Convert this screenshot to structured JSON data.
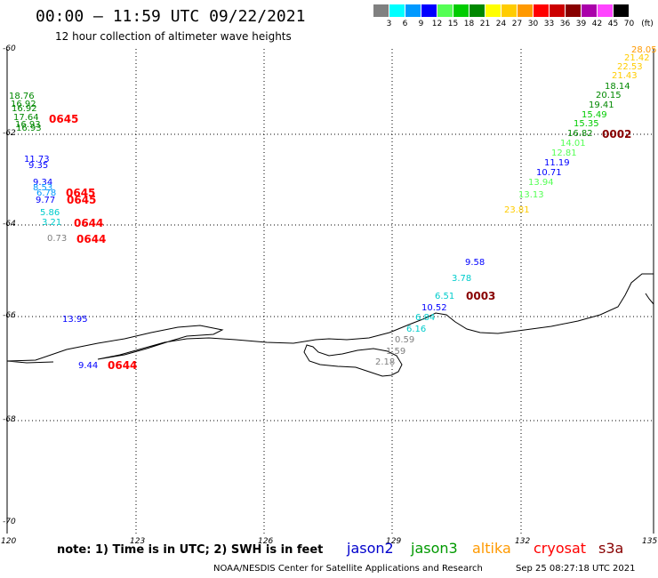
{
  "header": {
    "title": "00:00 – 11:59 UTC 09/22/2021",
    "subtitle": "12 hour collection of altimeter wave heights"
  },
  "scale": {
    "unit": "(ft)",
    "bins": [
      {
        "label": "3",
        "color": "#808080"
      },
      {
        "label": "6",
        "color": "#00ffff"
      },
      {
        "label": "9",
        "color": "#0099ff"
      },
      {
        "label": "12",
        "color": "#0000ff"
      },
      {
        "label": "15",
        "color": "#55ff55"
      },
      {
        "label": "18",
        "color": "#00cc00"
      },
      {
        "label": "21",
        "color": "#008800"
      },
      {
        "label": "24",
        "color": "#ffff00"
      },
      {
        "label": "27",
        "color": "#ffcc00"
      },
      {
        "label": "30",
        "color": "#ff9900"
      },
      {
        "label": "33",
        "color": "#ff0000"
      },
      {
        "label": "36",
        "color": "#cc0000"
      },
      {
        "label": "39",
        "color": "#880000"
      },
      {
        "label": "42",
        "color": "#aa00aa"
      },
      {
        "label": "45",
        "color": "#ff44ff"
      },
      {
        "label": "70",
        "color": "#000000"
      }
    ]
  },
  "axes": {
    "lat_labels": [
      "-60",
      "-62",
      "-64",
      "-66",
      "-68",
      "-70"
    ],
    "lon_labels": [
      "120",
      "123",
      "126",
      "129",
      "132",
      "135"
    ]
  },
  "observations": [
    {
      "v": "18.76",
      "color": "#008800"
    },
    {
      "v": "16.92",
      "color": "#008800"
    },
    {
      "v": "16.92",
      "color": "#008800"
    },
    {
      "v": "17.64",
      "color": "#008800"
    },
    {
      "v": "16.93",
      "color": "#008800"
    },
    {
      "v": "16.93",
      "color": "#008800"
    },
    {
      "v": "11.73",
      "color": "#0000ff"
    },
    {
      "v": "9.35",
      "color": "#0000ff"
    },
    {
      "v": "9.34",
      "color": "#0000ff"
    },
    {
      "v": "8.53",
      "color": "#0099ff"
    },
    {
      "v": "6.78",
      "color": "#0099ff"
    },
    {
      "v": "9.77",
      "color": "#0000ff"
    },
    {
      "v": "5.86",
      "color": "#00cccc"
    },
    {
      "v": "3.21",
      "color": "#00cccc"
    },
    {
      "v": "0.73",
      "color": "#808080"
    },
    {
      "v": "13.95",
      "color": "#0000ff"
    },
    {
      "v": "9.44",
      "color": "#0000ff"
    },
    {
      "v": "28.05",
      "color": "#ff9900"
    },
    {
      "v": "21.42",
      "color": "#ffcc00"
    },
    {
      "v": "22.53",
      "color": "#ffcc00"
    },
    {
      "v": "21.43",
      "color": "#ffcc00"
    },
    {
      "v": "18.14",
      "color": "#008800"
    },
    {
      "v": "20.15",
      "color": "#008800"
    },
    {
      "v": "19.41",
      "color": "#008800"
    },
    {
      "v": "15.49",
      "color": "#00cc00"
    },
    {
      "v": "15.35",
      "color": "#00cc00"
    },
    {
      "v": "16.82",
      "color": "#008800"
    },
    {
      "v": "14.01",
      "color": "#55ff55"
    },
    {
      "v": "12.81",
      "color": "#55ff55"
    },
    {
      "v": "11.19",
      "color": "#0000ff"
    },
    {
      "v": "10.71",
      "color": "#0000ff"
    },
    {
      "v": "13.94",
      "color": "#55ff55"
    },
    {
      "v": "13.13",
      "color": "#55ff55"
    },
    {
      "v": "23.81",
      "color": "#ffcc00"
    },
    {
      "v": "9.58",
      "color": "#0000ff"
    },
    {
      "v": "3.78",
      "color": "#00cccc"
    },
    {
      "v": "6.51",
      "color": "#00cccc"
    },
    {
      "v": "10.52",
      "color": "#0000ff"
    },
    {
      "v": "6.84",
      "color": "#00cccc"
    },
    {
      "v": "6.16",
      "color": "#00cccc"
    },
    {
      "v": "0.59",
      "color": "#808080"
    },
    {
      "v": "1.59",
      "color": "#808080"
    },
    {
      "v": "2.18",
      "color": "#808080"
    }
  ],
  "time_tags": [
    {
      "v": "0645",
      "color": "#ff0000"
    },
    {
      "v": "0645",
      "color": "#ff0000"
    },
    {
      "v": "0645",
      "color": "#ff0000"
    },
    {
      "v": "0644",
      "color": "#ff0000"
    },
    {
      "v": "0644",
      "color": "#ff0000"
    },
    {
      "v": "0644",
      "color": "#ff0000"
    },
    {
      "v": "0002",
      "color": "#880000"
    },
    {
      "v": "0003",
      "color": "#880000"
    }
  ],
  "footer": {
    "note": "note:  1) Time is in UTC;  2) SWH is in feet",
    "satellites": [
      {
        "name": "jason2",
        "color": "#0000cc"
      },
      {
        "name": "jason3",
        "color": "#009900"
      },
      {
        "name": "altika",
        "color": "#ff9900"
      },
      {
        "name": "cryosat",
        "color": "#ff0000"
      },
      {
        "name": "s3a",
        "color": "#880000"
      }
    ],
    "credit": "NOAA/NESDIS Center for Satellite Applications and Research",
    "timestamp": "Sep 25 08:27:18 UTC 2021"
  }
}
